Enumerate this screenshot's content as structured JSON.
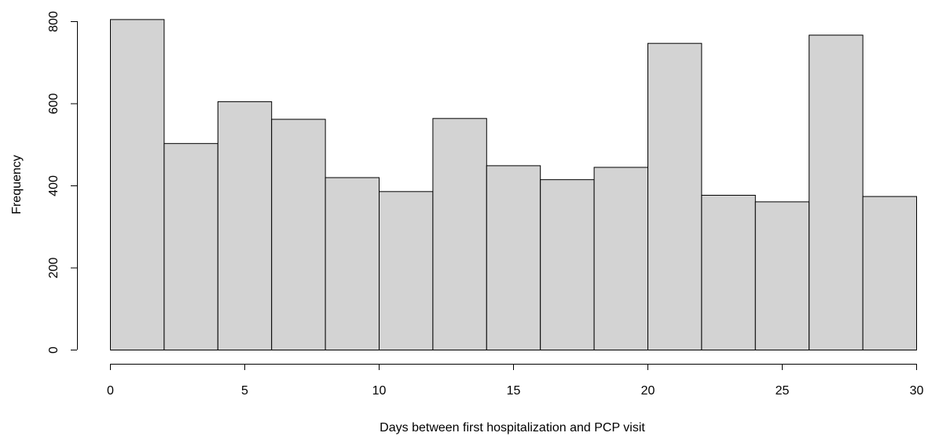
{
  "chart_data": {
    "type": "bar",
    "subtype": "histogram",
    "bin_edges": [
      0,
      2,
      4,
      6,
      8,
      10,
      12,
      14,
      16,
      18,
      20,
      22,
      24,
      26,
      28,
      30
    ],
    "values": [
      805,
      503,
      605,
      562,
      420,
      386,
      564,
      449,
      415,
      445,
      747,
      377,
      361,
      767,
      374
    ],
    "xlabel": "Days between first hospitalization and PCP visit",
    "ylabel": "Frequency",
    "xlim": [
      0,
      30
    ],
    "ylim": [
      0,
      800
    ],
    "x_ticks": [
      0,
      5,
      10,
      15,
      20,
      25,
      30
    ],
    "y_ticks": [
      0,
      200,
      400,
      600,
      800
    ],
    "bar_fill": "#d3d3d3",
    "bar_stroke": "#000000",
    "grid": false,
    "legend": "none"
  }
}
